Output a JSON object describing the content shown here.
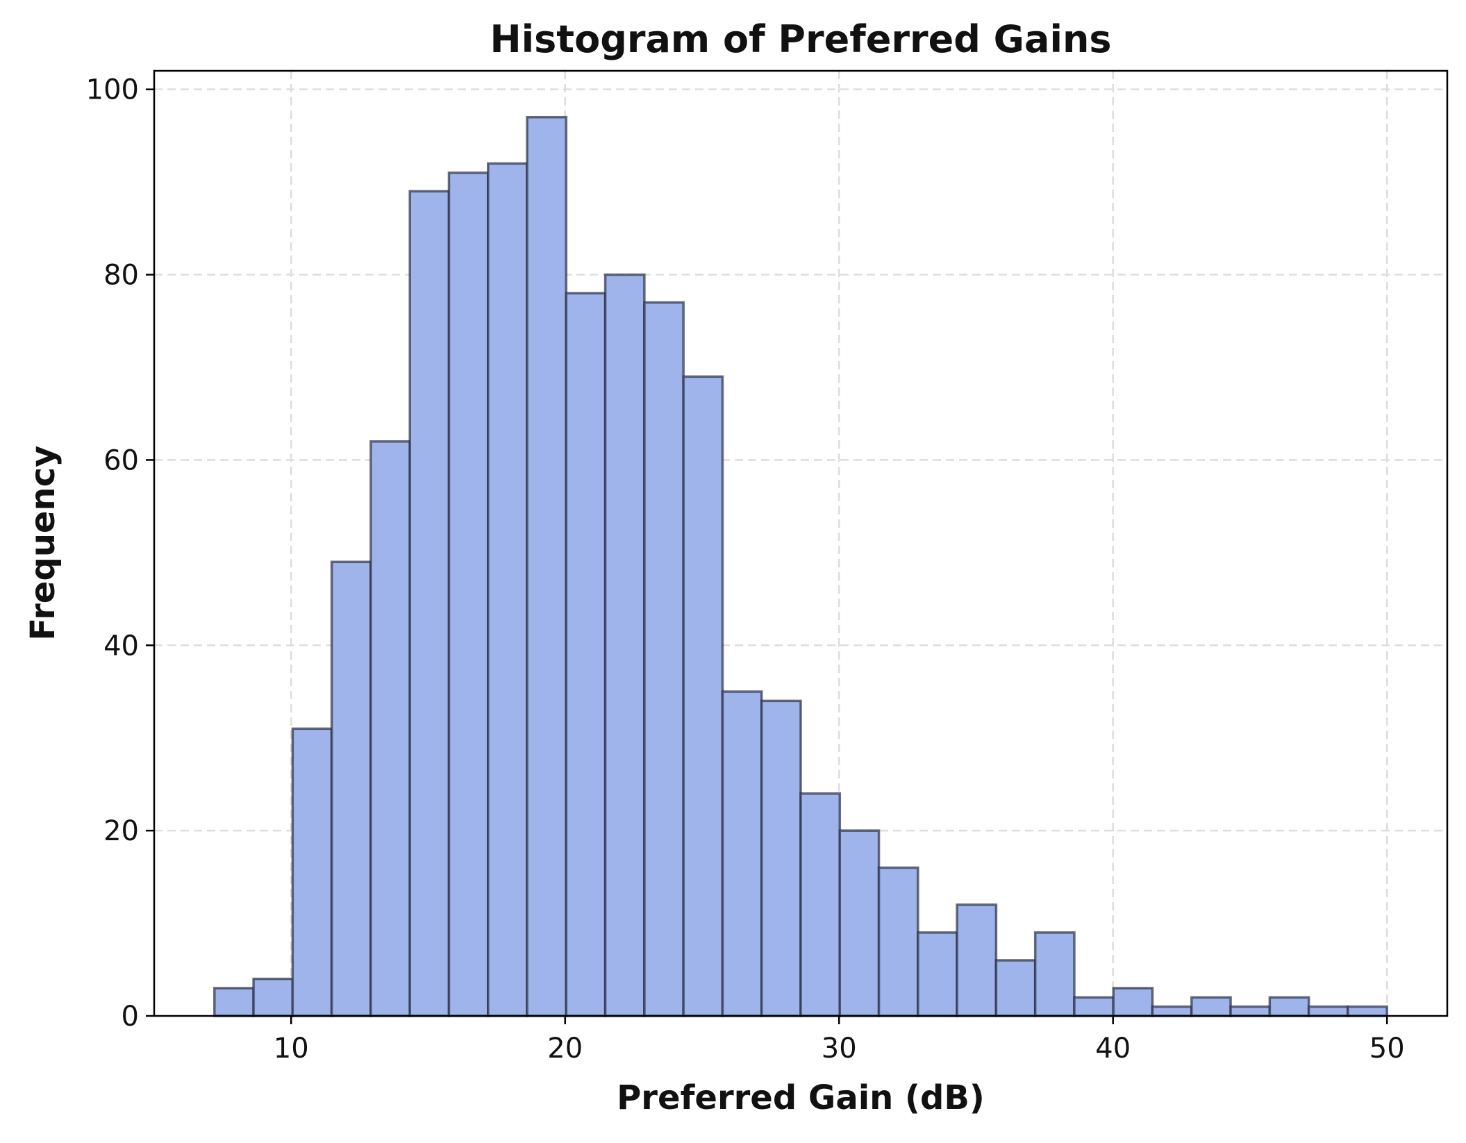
{
  "chart_data": {
    "type": "bar",
    "title": "Histogram of Preferred Gains",
    "xlabel": "Preferred Gain (dB)",
    "ylabel": "Frequency",
    "xlim": [
      5.0,
      52.2
    ],
    "ylim": [
      0,
      102
    ],
    "xticks": [
      10,
      20,
      30,
      40,
      50
    ],
    "yticks": [
      0,
      20,
      40,
      60,
      80,
      100
    ],
    "grid": true,
    "bar_color": "#a0b4ec",
    "edge_color": "#2b2f45",
    "bin_start": 7.2,
    "bin_end": 50.0,
    "counts": [
      3,
      4,
      31,
      49,
      62,
      89,
      91,
      92,
      97,
      78,
      80,
      77,
      69,
      35,
      34,
      24,
      20,
      16,
      9,
      12,
      6,
      9,
      2,
      3,
      1,
      2,
      1,
      2,
      1,
      1
    ]
  }
}
